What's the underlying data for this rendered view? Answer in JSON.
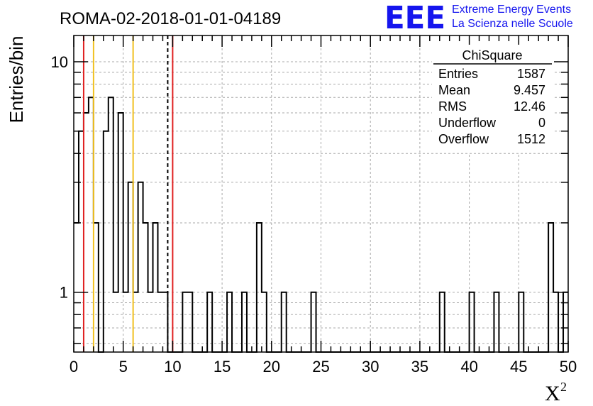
{
  "title": "ROMA-02-2018-01-01-04189",
  "logo": {
    "mark": "EEE",
    "line1": "Extreme Energy Events",
    "line2": "La Scienza nelle Scuole",
    "color": "#1515ee"
  },
  "stats": {
    "name": "ChiSquare",
    "rows": [
      {
        "label": "Entries",
        "value": "1587"
      },
      {
        "label": "Mean",
        "value": "9.457"
      },
      {
        "label": "RMS",
        "value": "12.46"
      },
      {
        "label": "Underflow",
        "value": "0"
      },
      {
        "label": "Overflow",
        "value": "1512"
      }
    ]
  },
  "chart_data": {
    "type": "bar",
    "histogram": true,
    "xlabel": "X",
    "xlabel_superscript": "2",
    "ylabel": "Entries/bin",
    "xlim": [
      0,
      50
    ],
    "ylim": [
      0.55,
      13
    ],
    "yscale": "log",
    "grid": true,
    "bin_width": 0.5,
    "x_ticks": [
      0,
      5,
      10,
      15,
      20,
      25,
      30,
      35,
      40,
      45,
      50
    ],
    "y_ticks": [
      1,
      10
    ],
    "bins": [
      [
        0.0,
        2
      ],
      [
        0.5,
        5
      ],
      [
        1.0,
        6
      ],
      [
        1.5,
        7
      ],
      [
        2.0,
        2
      ],
      [
        2.5,
        0
      ],
      [
        3.0,
        5
      ],
      [
        3.5,
        7
      ],
      [
        4.0,
        1
      ],
      [
        4.5,
        6
      ],
      [
        5.0,
        1
      ],
      [
        5.5,
        3
      ],
      [
        6.0,
        1
      ],
      [
        6.5,
        3
      ],
      [
        7.0,
        2
      ],
      [
        7.5,
        1
      ],
      [
        8.0,
        2
      ],
      [
        8.5,
        1
      ],
      [
        9.0,
        1
      ],
      [
        9.5,
        0
      ],
      [
        10.0,
        0
      ],
      [
        10.5,
        0
      ],
      [
        11.0,
        1
      ],
      [
        11.5,
        1
      ],
      [
        13.5,
        1
      ],
      [
        15.5,
        1
      ],
      [
        17.0,
        1
      ],
      [
        18.5,
        2
      ],
      [
        19.0,
        1
      ],
      [
        21.0,
        1
      ],
      [
        24.0,
        1
      ],
      [
        37.0,
        1
      ],
      [
        40.0,
        1
      ],
      [
        42.5,
        1
      ],
      [
        45.0,
        1
      ],
      [
        48.0,
        2
      ],
      [
        48.5,
        1
      ],
      [
        49.5,
        1
      ]
    ],
    "vertical_lines": [
      {
        "x": 1.0,
        "color": "#e02020",
        "style": "solid"
      },
      {
        "x": 2.0,
        "color": "#f0c020",
        "style": "solid"
      },
      {
        "x": 6.0,
        "color": "#f0c020",
        "style": "solid"
      },
      {
        "x": 9.5,
        "color": "#000000",
        "style": "dashed"
      },
      {
        "x": 10.0,
        "color": "#e02020",
        "style": "solid"
      }
    ]
  }
}
